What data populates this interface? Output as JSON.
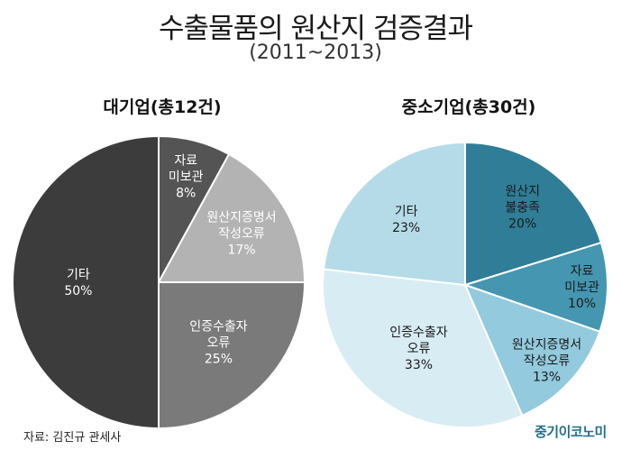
{
  "title": "수출물품의 원산지 검증결과",
  "subtitle": "(2011~2013)",
  "source": "자료: 김진규 관세사",
  "brand": "중기이코노미",
  "chart_data": [
    {
      "type": "pie",
      "title": "대기업(총12건)",
      "slices": [
        {
          "label": "자료\n미보관",
          "value": 8,
          "display": "8%",
          "color": "#545454",
          "text_color": "#ffffff"
        },
        {
          "label": "원산지증명서\n작성오류",
          "value": 17,
          "display": "17%",
          "color": "#b3b3b3",
          "text_color": "#ffffff"
        },
        {
          "label": "인증수출자\n오류",
          "value": 25,
          "display": "25%",
          "color": "#7a7a7a",
          "text_color": "#ffffff"
        },
        {
          "label": "기타",
          "value": 50,
          "display": "50%",
          "color": "#3c3c3c",
          "text_color": "#ffffff"
        }
      ]
    },
    {
      "type": "pie",
      "title": "중소기업(총30건)",
      "slices": [
        {
          "label": "원산지\n불충족",
          "value": 20,
          "display": "20%",
          "color": "#2f7d96",
          "text_color": "#1a1a1a"
        },
        {
          "label": "자료\n미보관",
          "value": 10,
          "display": "10%",
          "color": "#4596b0",
          "text_color": "#1a1a1a"
        },
        {
          "label": "원산지증명서\n작성오류",
          "value": 13,
          "display": "13%",
          "color": "#93cadd",
          "text_color": "#1a1a1a"
        },
        {
          "label": "인증수출자\n오류",
          "value": 33,
          "display": "33%",
          "color": "#d8ecf3",
          "text_color": "#1a1a1a"
        },
        {
          "label": "기타",
          "value": 23,
          "display": "23%",
          "color": "#b5dbe8",
          "text_color": "#1a1a1a"
        }
      ]
    }
  ]
}
